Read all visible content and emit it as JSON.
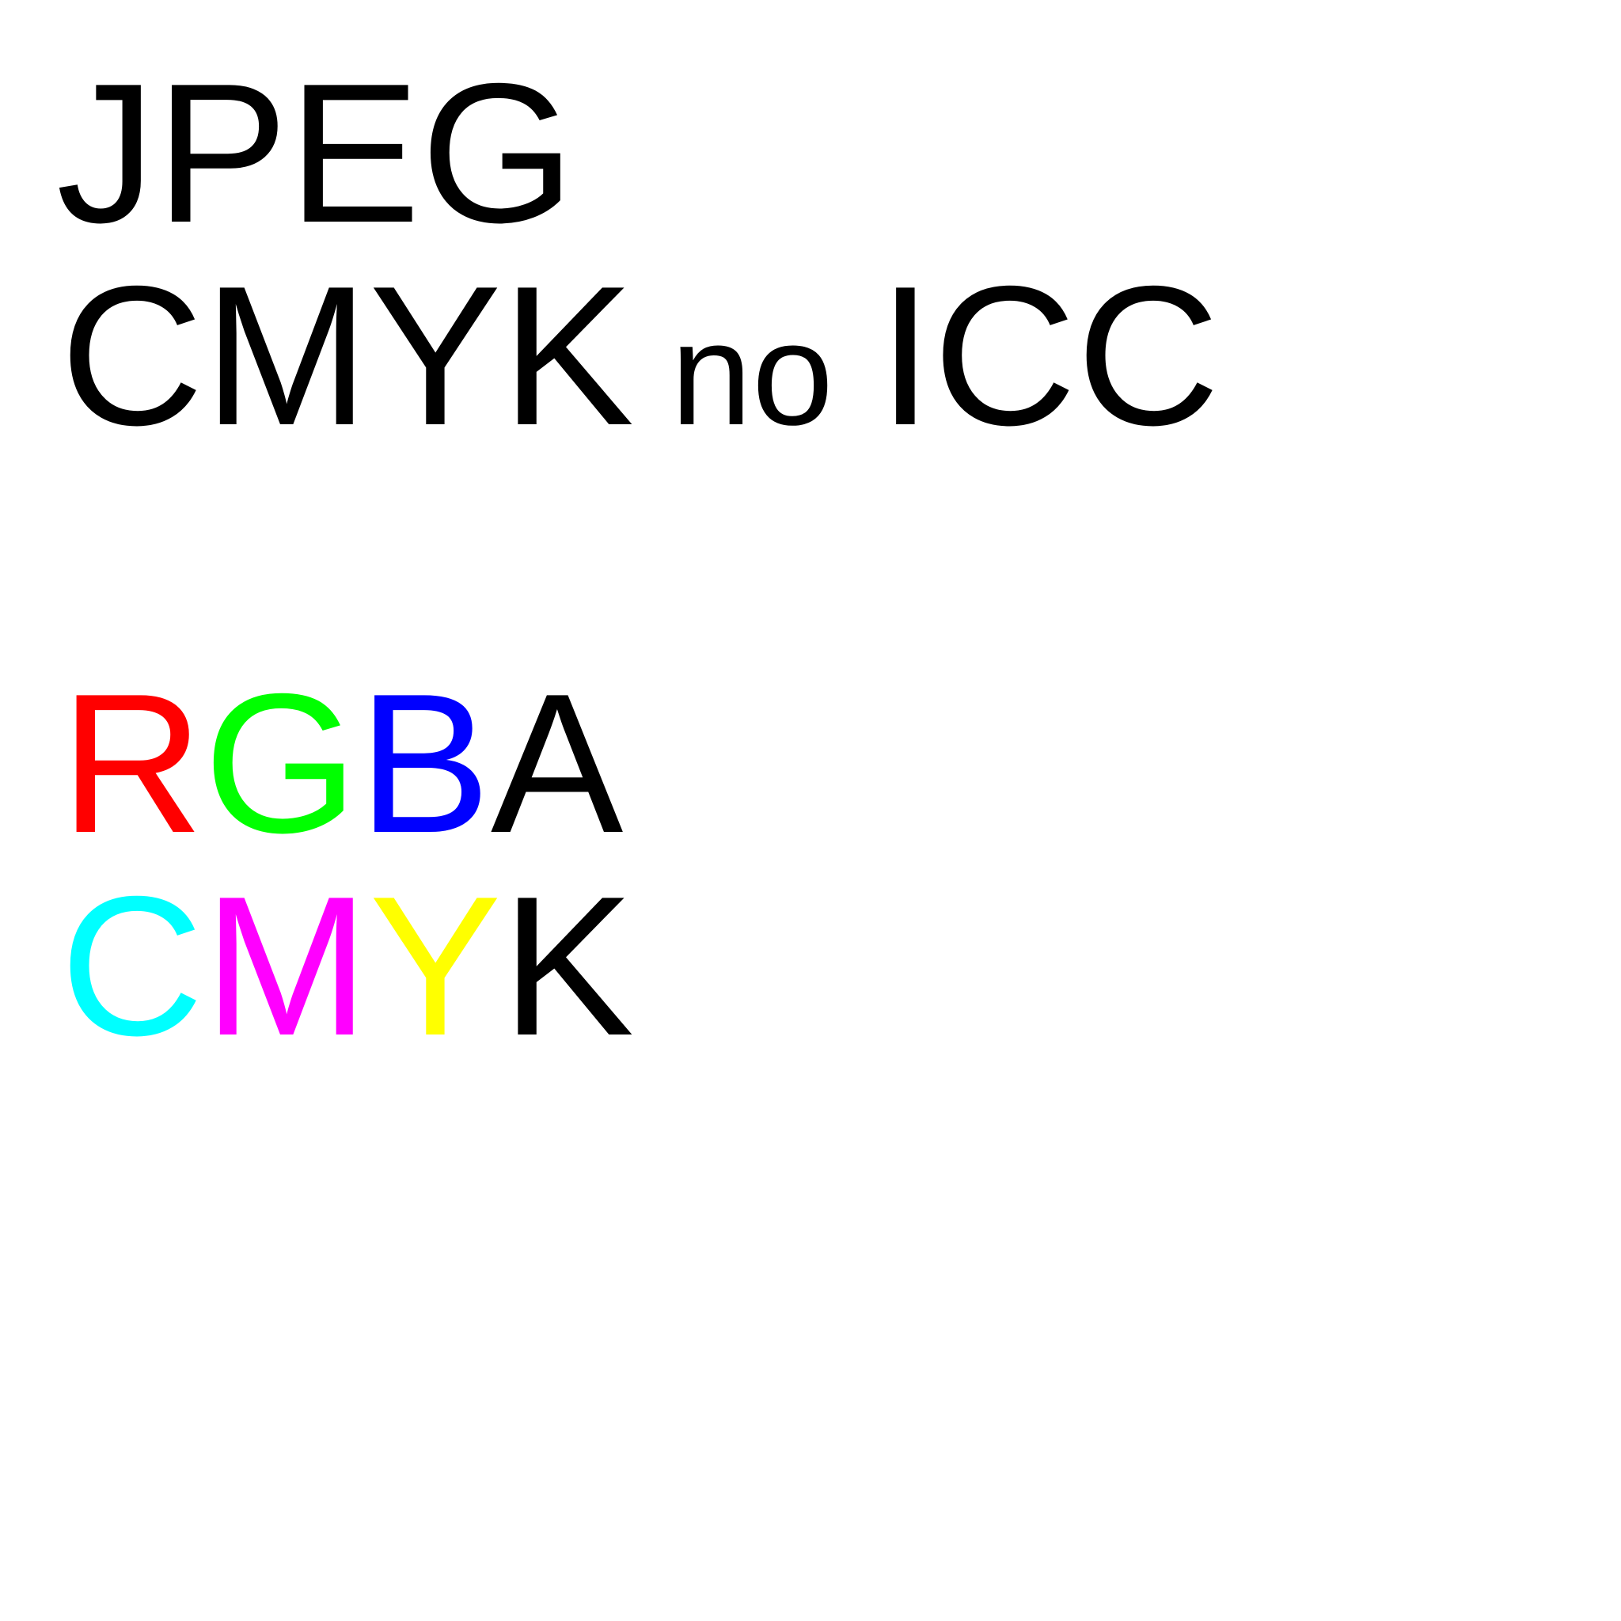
{
  "lines": {
    "l1": "JPEG",
    "l2_a": "CMYK",
    "l2_b": "no",
    "l2_c": "ICC",
    "l3": [
      "R",
      "G",
      "B",
      "A"
    ],
    "l4": [
      "C",
      "M",
      "Y",
      "K"
    ]
  },
  "colors": {
    "black": "#000000",
    "red": "#ff0000",
    "green": "#00ff00",
    "blue": "#0000ff",
    "cyan": "#00ffff",
    "magenta": "#ff00ff",
    "yellow": "#ffff00",
    "background": "#ffffff"
  }
}
